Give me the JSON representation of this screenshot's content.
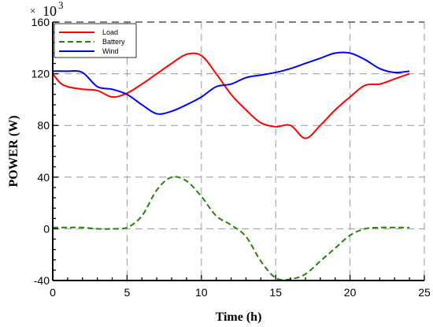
{
  "chart_data": {
    "type": "line",
    "xlabel": "Time (h)",
    "ylabel": "POWER (W)",
    "y_multiplier": {
      "symbol": "×",
      "base": "10",
      "exponent": "3"
    },
    "xlim": [
      0,
      25
    ],
    "ylim": [
      -40,
      160
    ],
    "x_ticks": [
      0,
      5,
      10,
      15,
      20,
      25
    ],
    "x_tick_labels": [
      "0",
      "5",
      "10",
      "15",
      "20",
      "25"
    ],
    "y_ticks": [
      -40,
      0,
      40,
      80,
      120,
      160
    ],
    "y_tick_labels": [
      "-40",
      "0",
      "40",
      "80",
      "120",
      "160"
    ],
    "grid": true,
    "legend_position": "top-left",
    "series": [
      {
        "name": "Load",
        "color": "#ff0000",
        "dash": "solid",
        "x": [
          0,
          0.5,
          1,
          2,
          3,
          4,
          5,
          6,
          7,
          8,
          9,
          10,
          11,
          12,
          13,
          14,
          15,
          16,
          17,
          18,
          19,
          20,
          21,
          22,
          23,
          24
        ],
        "y": [
          120,
          113,
          110,
          108,
          107,
          102,
          105,
          112,
          120,
          128,
          135,
          134,
          120,
          104,
          92,
          82,
          79,
          80,
          70,
          80,
          92,
          102,
          111,
          112,
          116,
          120
        ]
      },
      {
        "name": "Battery",
        "color": "#2e7d11",
        "dash": "dashed",
        "x": [
          0,
          1,
          2,
          3,
          4,
          5,
          6,
          7,
          8,
          9,
          10,
          11,
          12,
          13,
          14,
          15,
          16,
          17,
          18,
          19,
          20,
          21,
          22,
          23,
          24
        ],
        "y": [
          1,
          1,
          1,
          0,
          0,
          1,
          10,
          30,
          40,
          37,
          25,
          10,
          3,
          -6,
          -25,
          -38,
          -39,
          -35,
          -25,
          -15,
          -5,
          0,
          1,
          1,
          1
        ]
      },
      {
        "name": "Wind",
        "color": "#0000ff",
        "dash": "solid",
        "x": [
          0,
          1,
          2,
          3,
          4,
          5,
          6,
          7,
          8,
          9,
          10,
          11,
          12,
          13,
          14,
          15,
          16,
          17,
          18,
          19,
          20,
          21,
          22,
          23,
          24
        ],
        "y": [
          122,
          122,
          121,
          110,
          108,
          104,
          96,
          89,
          91,
          96,
          102,
          110,
          112,
          117,
          119,
          121,
          124,
          128,
          132,
          136,
          136,
          131,
          124,
          121,
          122
        ]
      }
    ]
  }
}
